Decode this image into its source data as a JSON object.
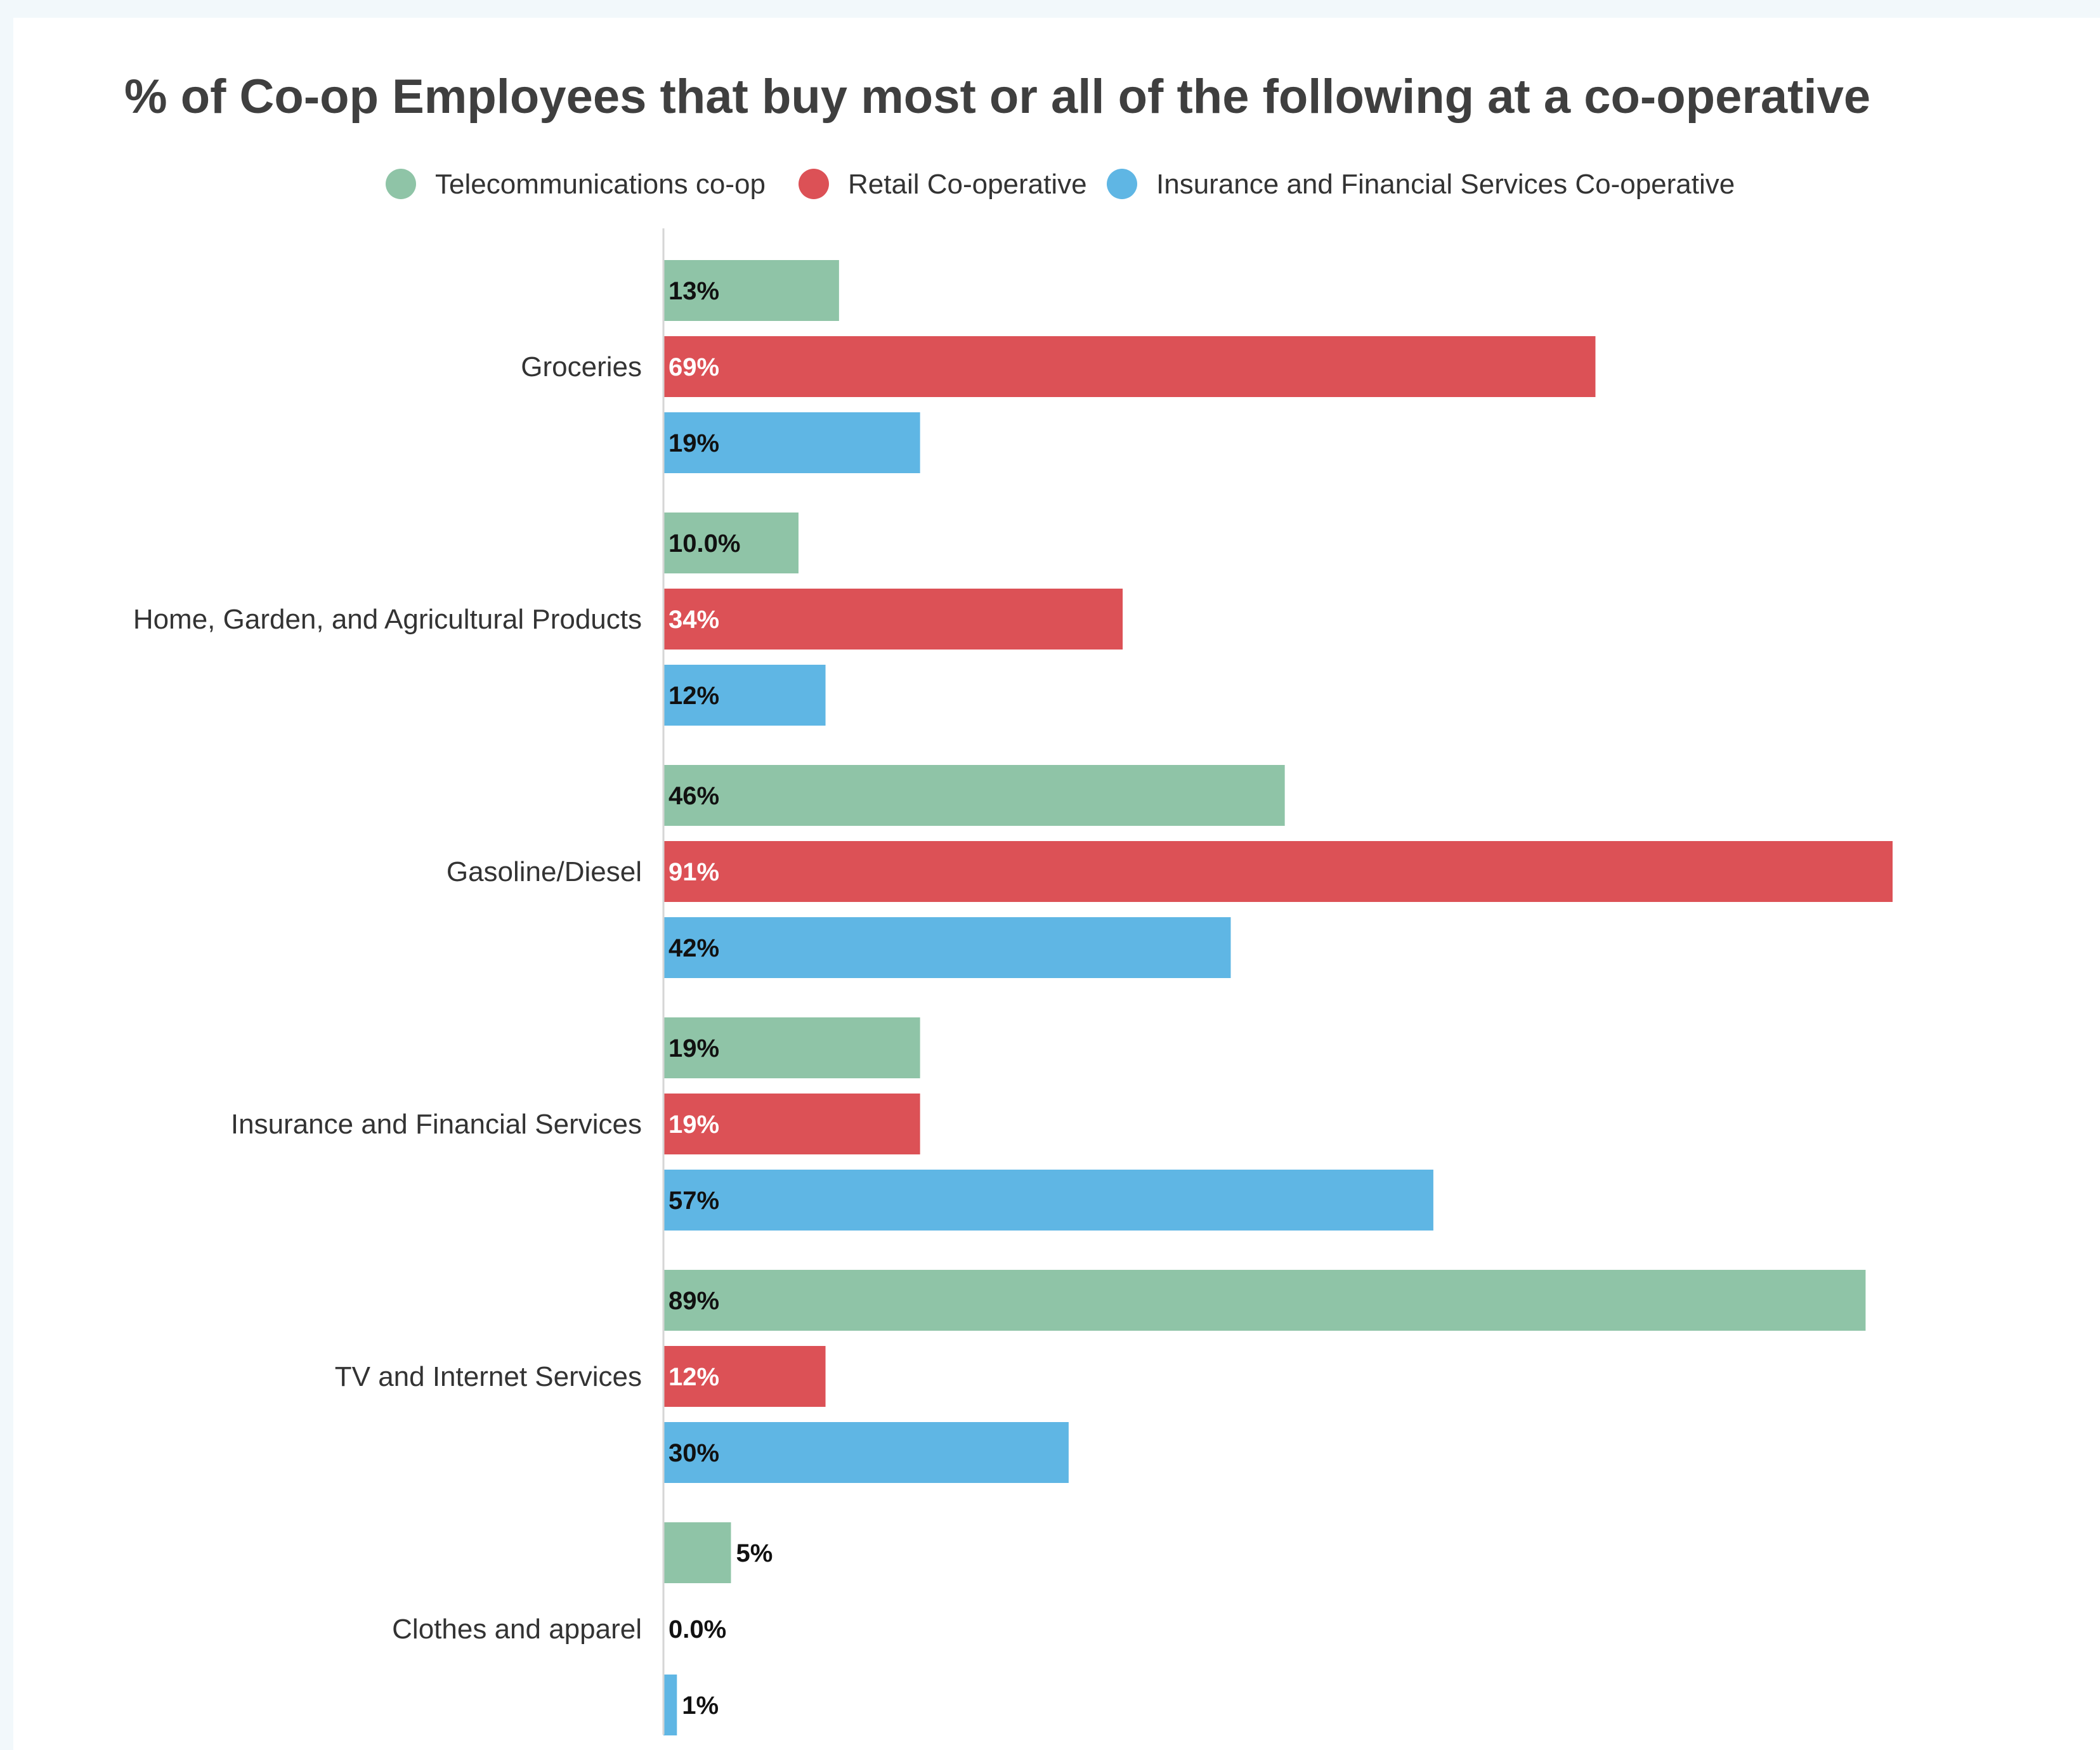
{
  "chart_data": {
    "type": "bar",
    "orientation": "horizontal",
    "title": "% of Co-op Employees that buy most or all of the following at a co-operative",
    "xlabel": "",
    "ylabel": "",
    "xlim": [
      0,
      100
    ],
    "grid": false,
    "legend_position": "top",
    "categories": [
      "Groceries",
      "Home, Garden, and Agricultural Products",
      "Gasoline/Diesel",
      "Insurance and Financial Services",
      "TV and Internet Services",
      "Clothes and apparel"
    ],
    "series": [
      {
        "name": "Telecommunications co-op",
        "color": "#8fc4a7",
        "label_color": "#111111",
        "values": [
          13,
          10,
          46,
          19,
          89,
          5
        ],
        "labels": [
          "13%",
          "10.0%",
          "46%",
          "19%",
          "89%",
          "5%"
        ]
      },
      {
        "name": "Retail Co-operative",
        "color": "#dc5156",
        "label_color": "#ffffff",
        "values": [
          69,
          34,
          91,
          19,
          12,
          0
        ],
        "labels": [
          "69%",
          "34%",
          "91%",
          "19%",
          "12%",
          "0.0%"
        ]
      },
      {
        "name": "Insurance and Financial Services Co-operative",
        "color": "#5fb6e4",
        "label_color": "#111111",
        "values": [
          19,
          12,
          42,
          57,
          30,
          1
        ],
        "labels": [
          "19%",
          "12%",
          "42%",
          "57%",
          "30%",
          "1%"
        ]
      }
    ]
  }
}
